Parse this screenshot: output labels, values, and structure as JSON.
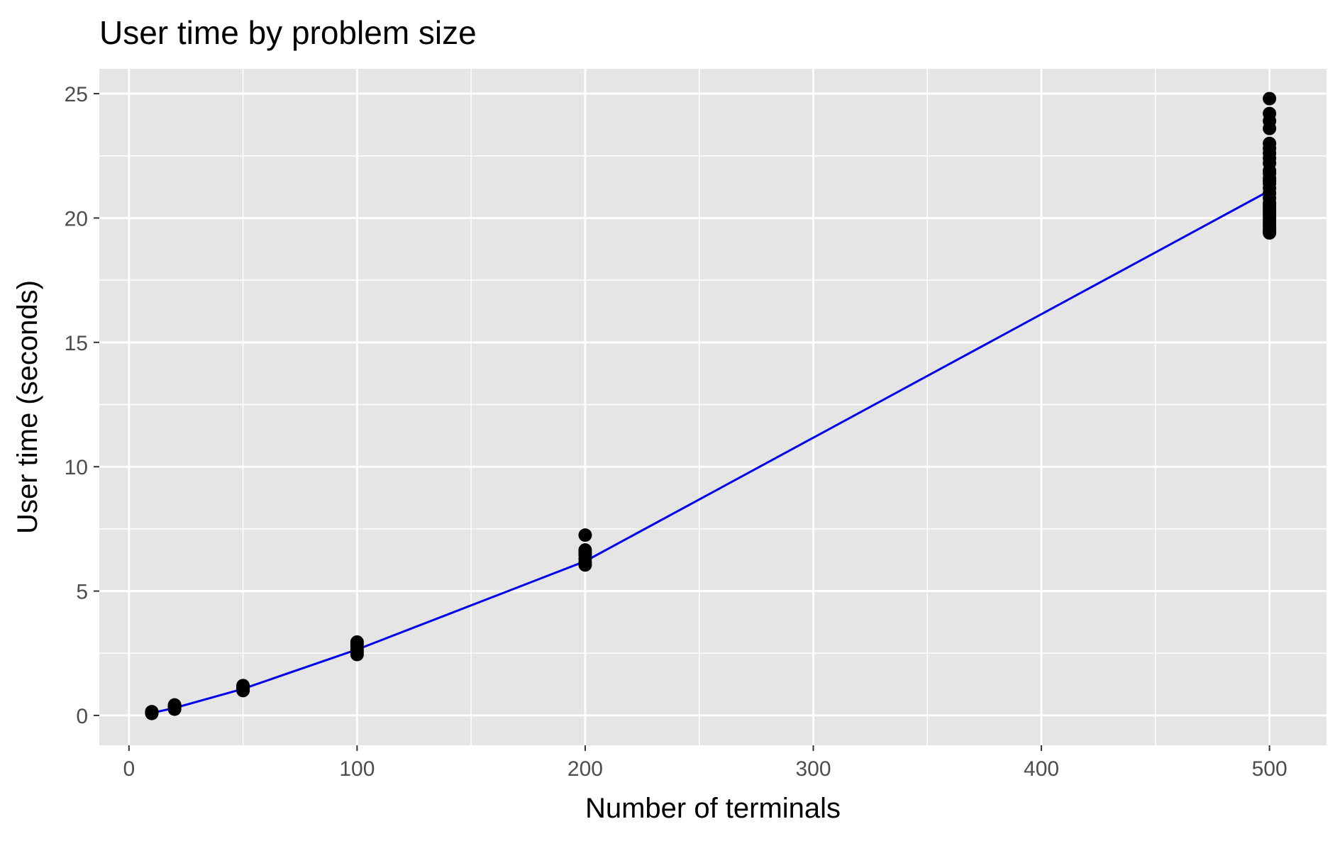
{
  "chart_data": {
    "type": "scatter",
    "title": "User time by problem size",
    "xlabel": "Number of terminals",
    "ylabel": "User time (seconds)",
    "xlim": [
      -13,
      525
    ],
    "ylim": [
      -1.2,
      26.0
    ],
    "x_ticks": [
      0,
      100,
      200,
      300,
      400,
      500
    ],
    "x_tick_labels": [
      "0",
      "100",
      "200",
      "300",
      "400",
      "500"
    ],
    "x_minor_ticks": [
      50,
      150,
      250,
      350,
      450
    ],
    "y_ticks": [
      0,
      5,
      10,
      15,
      20,
      25
    ],
    "y_tick_labels": [
      "0",
      "5",
      "10",
      "15",
      "20",
      "25"
    ],
    "y_minor_ticks": [
      2.5,
      7.5,
      12.5,
      17.5,
      22.5
    ],
    "grid": true,
    "colors": {
      "panel_background": "#e5e5e5",
      "grid": "#ffffff",
      "points": "#000000",
      "line": "#0000ee"
    },
    "series": [
      {
        "type": "scatter",
        "x": [
          10,
          10,
          10,
          10,
          20,
          20,
          20,
          20,
          20,
          50,
          50,
          50,
          50,
          50,
          100,
          100,
          100,
          100,
          100,
          100,
          200,
          200,
          200,
          200,
          200,
          200,
          200,
          500,
          500,
          500,
          500,
          500,
          500,
          500,
          500,
          500,
          500,
          500,
          500,
          500,
          500,
          500,
          500,
          500,
          500,
          500,
          500,
          500,
          500,
          500,
          500,
          500,
          500,
          500,
          500,
          500,
          500,
          500
        ],
        "y": [
          0.08,
          0.1,
          0.12,
          0.15,
          0.25,
          0.3,
          0.35,
          0.38,
          0.42,
          1.0,
          1.05,
          1.1,
          1.15,
          1.2,
          2.45,
          2.55,
          2.65,
          2.75,
          2.85,
          2.95,
          6.05,
          6.15,
          6.3,
          6.45,
          6.55,
          6.65,
          7.25,
          24.8,
          24.2,
          23.9,
          23.6,
          23.0,
          22.8,
          22.6,
          22.4,
          22.2,
          21.9,
          21.8,
          21.6,
          21.5,
          21.4,
          21.2,
          21.0,
          20.8,
          20.6,
          20.5,
          20.4,
          20.3,
          20.2,
          20.1,
          20.0,
          19.9,
          19.8,
          19.7,
          19.6,
          19.5,
          19.45,
          19.4
        ]
      },
      {
        "type": "line",
        "x": [
          10,
          20,
          50,
          100,
          200,
          500
        ],
        "y": [
          0.1,
          0.3,
          1.07,
          2.65,
          6.2,
          21.1
        ]
      }
    ]
  }
}
